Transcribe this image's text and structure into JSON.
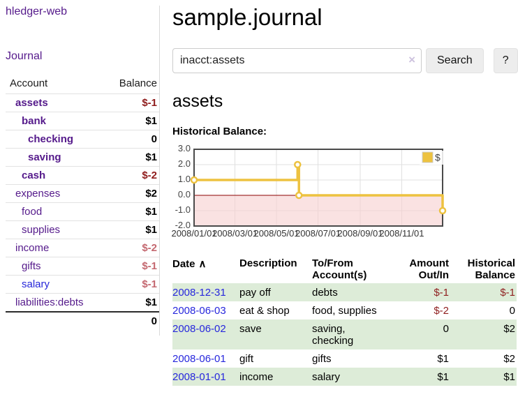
{
  "sidebar": {
    "app_title": "hledger-web",
    "journal_label": "Journal",
    "accounts_table": {
      "headers": {
        "account": "Account",
        "balance": "Balance"
      },
      "rows": [
        {
          "name": "assets",
          "depth": 1,
          "bold": true,
          "balance": "$-1",
          "neg": "strong"
        },
        {
          "name": "bank",
          "depth": 2,
          "bold": true,
          "balance": "$1",
          "neg": "none"
        },
        {
          "name": "checking",
          "depth": 3,
          "bold": true,
          "balance": "0",
          "neg": "none"
        },
        {
          "name": "saving",
          "depth": 3,
          "bold": true,
          "balance": "$1",
          "neg": "none"
        },
        {
          "name": "cash",
          "depth": 2,
          "bold": true,
          "balance": "$-2",
          "neg": "strong"
        },
        {
          "name": "expenses",
          "depth": 1,
          "bold": false,
          "balance": "$2",
          "neg": "none"
        },
        {
          "name": "food",
          "depth": 2,
          "bold": false,
          "balance": "$1",
          "neg": "none"
        },
        {
          "name": "supplies",
          "depth": 2,
          "bold": false,
          "balance": "$1",
          "neg": "none"
        },
        {
          "name": "income",
          "depth": 1,
          "bold": false,
          "balance": "$-2",
          "neg": "muted"
        },
        {
          "name": "gifts",
          "depth": 2,
          "bold": false,
          "balance": "$-1",
          "neg": "muted"
        },
        {
          "name": "salary",
          "depth": 2,
          "bold": false,
          "balance": "$-1",
          "neg": "muted",
          "link_color": "blue"
        },
        {
          "name": "liabilities:debts",
          "depth": 1,
          "bold": false,
          "balance": "$1",
          "neg": "none"
        }
      ],
      "total": "0"
    }
  },
  "header": {
    "title": "sample.journal"
  },
  "search": {
    "value": "inacct:assets",
    "clear_icon": "×",
    "button_label": "Search",
    "help_label": "?"
  },
  "main": {
    "account_title": "assets",
    "chart_label": "Historical Balance:"
  },
  "chart_data": {
    "type": "line",
    "subtype": "step",
    "title": "Historical Balance",
    "series": [
      {
        "name": "$",
        "color": "#edc240",
        "points": [
          [
            "2008-01-01",
            1
          ],
          [
            "2008-06-01",
            2
          ],
          [
            "2008-06-03",
            0
          ],
          [
            "2008-12-31",
            -1
          ]
        ]
      }
    ],
    "x_range": [
      "2008-01-01",
      "2008-12-31"
    ],
    "ylim": [
      -2,
      3
    ],
    "x_ticks": [
      "2008/01/01",
      "2008/03/01",
      "2008/05/01",
      "2008/07/01",
      "2008/09/01",
      "2008/11/01"
    ],
    "y_ticks": [
      "3.0",
      "2.0",
      "1.0",
      "0.0",
      "-1.0",
      "-2.0"
    ],
    "grid": true,
    "legend": {
      "label": "$",
      "position": "top-right"
    },
    "negative_region_color": "#f7cfcf",
    "zero_line_color": "#8b0000",
    "frame_color": "#4a4a4a",
    "grid_color": "#e0e0e0"
  },
  "transactions": {
    "headers": [
      {
        "label": "Date",
        "sort_icon": "∧",
        "align": "left"
      },
      {
        "label": "Description",
        "align": "left"
      },
      {
        "label": "To/From Account(s)",
        "align": "left"
      },
      {
        "label": "Amount Out/In",
        "align": "right"
      },
      {
        "label": "Historical Balance",
        "align": "right"
      }
    ],
    "rows": [
      {
        "date": "2008-12-31",
        "description": "pay off",
        "accounts": "debts",
        "amount": "$-1",
        "balance": "$-1"
      },
      {
        "date": "2008-06-03",
        "description": "eat & shop",
        "accounts": "food, supplies",
        "amount": "$-2",
        "balance": "0"
      },
      {
        "date": "2008-06-02",
        "description": "save",
        "accounts": "saving, checking",
        "amount": "0",
        "balance": "$2"
      },
      {
        "date": "2008-06-01",
        "description": "gift",
        "accounts": "gifts",
        "amount": "$1",
        "balance": "$2"
      },
      {
        "date": "2008-01-01",
        "description": "income",
        "accounts": "salary",
        "amount": "$1",
        "balance": "$1"
      }
    ]
  }
}
